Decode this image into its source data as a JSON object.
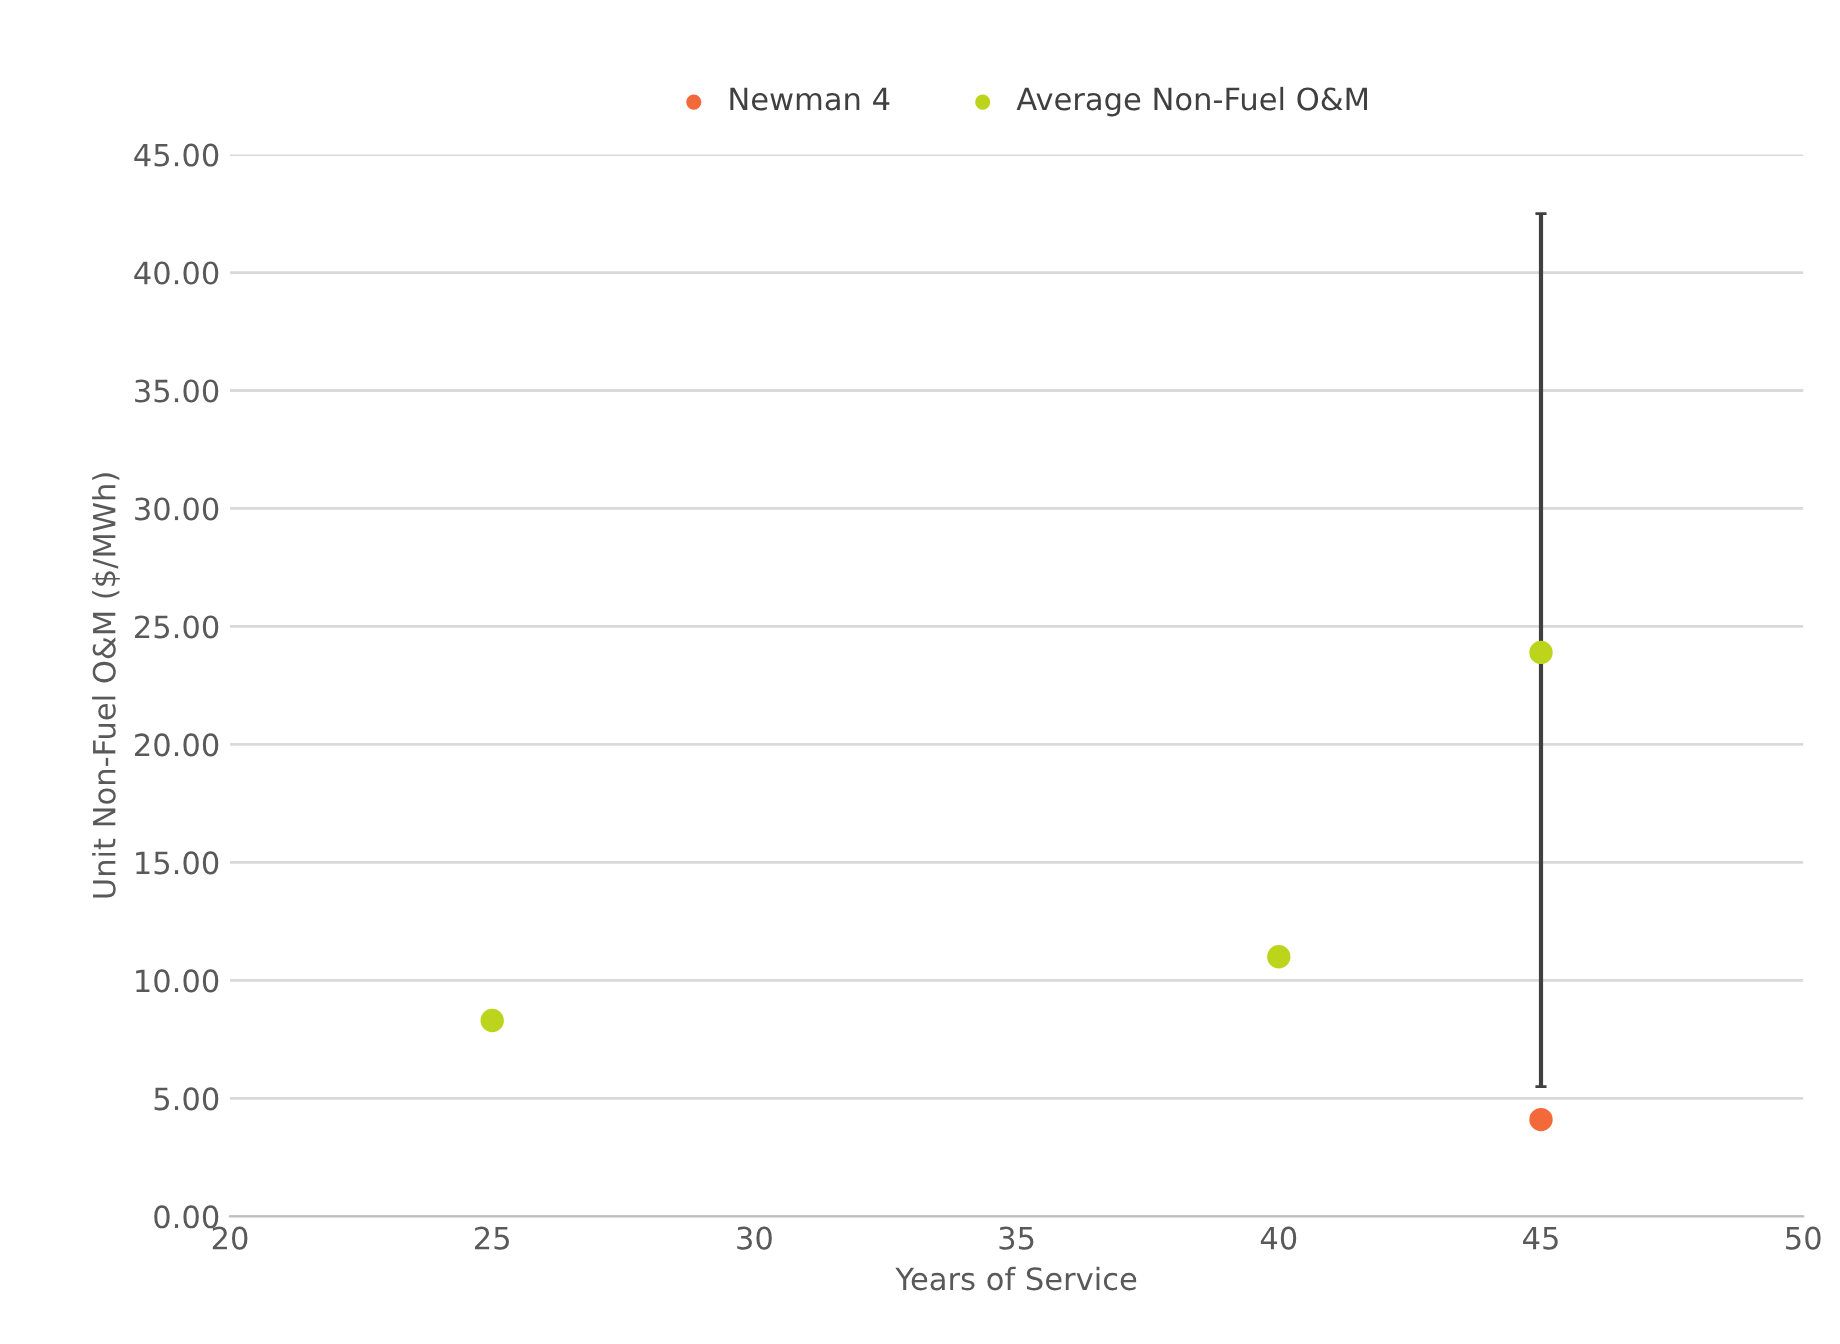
{
  "chart_data": {
    "type": "scatter",
    "xlabel": "Years of Service",
    "ylabel": "Unit Non-Fuel O&M ($/MWh)",
    "xlim": [
      20,
      50
    ],
    "xticks": [
      20,
      25,
      30,
      35,
      40,
      45,
      50
    ],
    "ylim": [
      0,
      45
    ],
    "yticks": [
      {
        "value": 0,
        "label": "0.00"
      },
      {
        "value": 5,
        "label": "5.00"
      },
      {
        "value": 10,
        "label": "10.00"
      },
      {
        "value": 15,
        "label": "15.00"
      },
      {
        "value": 20,
        "label": "20.00"
      },
      {
        "value": 25,
        "label": "25.00"
      },
      {
        "value": 30,
        "label": "30.00"
      },
      {
        "value": 35,
        "label": "35.00"
      },
      {
        "value": 40,
        "label": "40.00"
      },
      {
        "value": 45,
        "label": "45.00"
      }
    ],
    "grid": "y",
    "legend": "top",
    "marker": "circle",
    "series": [
      {
        "name": "Newman 4",
        "color": "#f4693a",
        "x": [
          45
        ],
        "values": [
          4.1
        ]
      },
      {
        "name": "Average Non-Fuel O&M",
        "color": "#bcd41c",
        "x": [
          25,
          40,
          45
        ],
        "values": [
          8.3,
          11.0,
          23.9
        ],
        "errors": [
          null,
          null,
          [
            5.5,
            42.5
          ]
        ]
      }
    ]
  }
}
